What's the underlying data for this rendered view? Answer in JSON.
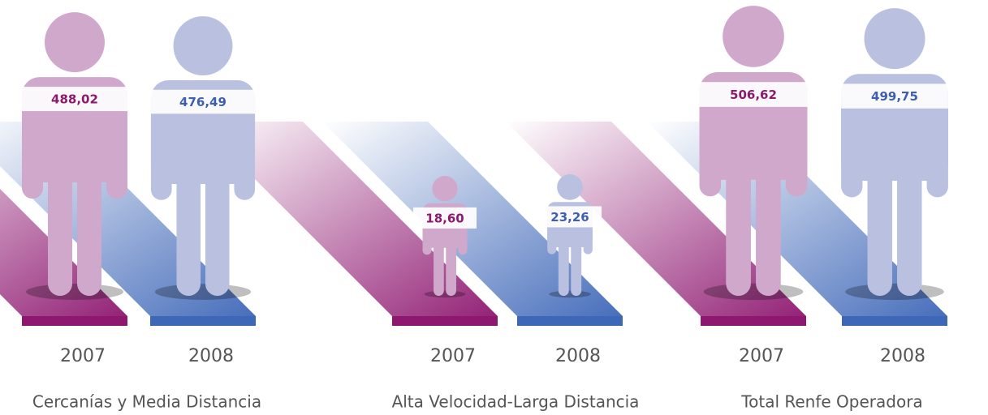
{
  "chart_data": {
    "type": "pictogram",
    "categories": [
      "Cercanías y Media Distancia",
      "Alta Velocidad-Larga Distancia",
      "Total Renfe Operadora"
    ],
    "series": [
      {
        "name": "2007",
        "color": "#cfa8cc",
        "label_color": "#8b1a6e",
        "ramp_color": "#8e1770",
        "values": [
          488.02,
          18.6,
          506.62
        ],
        "value_labels": [
          "488,02",
          "18,60",
          "506,62"
        ]
      },
      {
        "name": "2008",
        "color": "#b9c0e0",
        "label_color": "#3d5fae",
        "ramp_color": "#3e67b8",
        "values": [
          476.49,
          23.26,
          499.75
        ],
        "value_labels": [
          "476,49",
          "23,26",
          "499,75"
        ]
      }
    ]
  }
}
